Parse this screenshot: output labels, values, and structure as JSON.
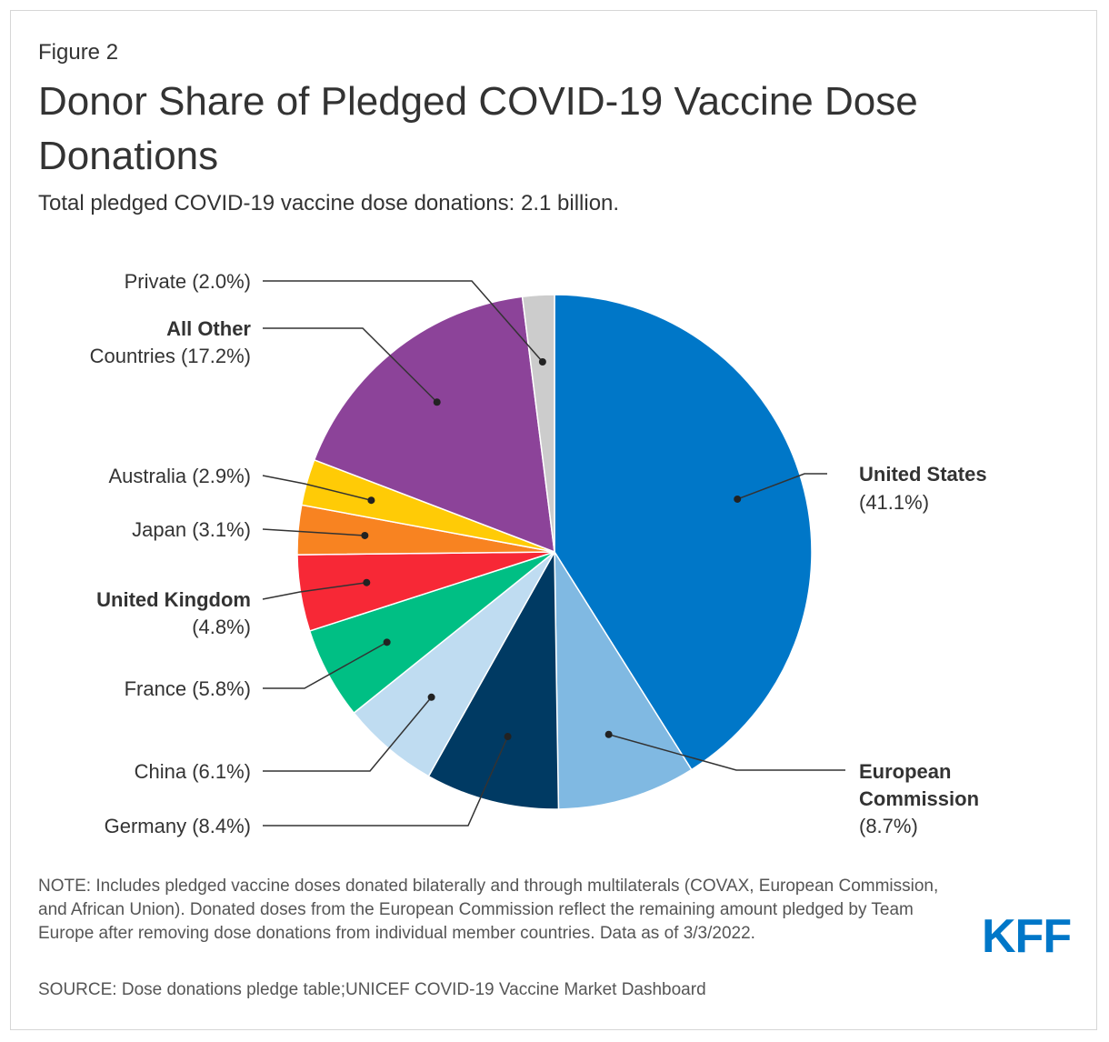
{
  "header": {
    "figure_label": "Figure 2",
    "title": "Donor Share of Pledged COVID-19 Vaccine Dose Donations",
    "subtitle": "Total pledged COVID-19 vaccine dose donations: 2.1 billion."
  },
  "chart_data": {
    "type": "pie",
    "title": "Donor Share of Pledged COVID-19 Vaccine Dose Donations",
    "subtitle": "Total pledged COVID-19 vaccine dose donations: 2.1 billion.",
    "unit": "%",
    "slices": [
      {
        "key": "us",
        "name": "United States",
        "value": 41.1,
        "value_label": "(41.1%)",
        "color": "#0077c8"
      },
      {
        "key": "ec",
        "name": "European Commission",
        "value": 8.7,
        "value_label": "(8.7%)",
        "color": "#80b9e2"
      },
      {
        "key": "de",
        "name": "Germany",
        "value": 8.4,
        "value_label": "(8.4%)",
        "color": "#003a63"
      },
      {
        "key": "cn",
        "name": "China",
        "value": 6.1,
        "value_label": "(6.1%)",
        "color": "#bfdcf1"
      },
      {
        "key": "fr",
        "name": "France",
        "value": 5.8,
        "value_label": "(5.8%)",
        "color": "#00bf84"
      },
      {
        "key": "uk",
        "name": "United Kingdom",
        "value": 4.8,
        "value_label": "(4.8%)",
        "color": "#f72836"
      },
      {
        "key": "jp",
        "name": "Japan",
        "value": 3.1,
        "value_label": "(3.1%)",
        "color": "#f88321"
      },
      {
        "key": "au",
        "name": "Australia",
        "value": 2.9,
        "value_label": "(2.9%)",
        "color": "#ffcb06"
      },
      {
        "key": "other",
        "name": "All Other Countries",
        "value": 17.2,
        "value_label": "(17.2%)",
        "color": "#8c4399"
      },
      {
        "key": "private",
        "name": "Private",
        "value": 2.0,
        "value_label": "(2.0%)",
        "color": "#cccccc"
      }
    ]
  },
  "labels": {
    "us": {
      "line1": "United States",
      "line2": "(41.1%)"
    },
    "ec": {
      "line1": "European",
      "line2": "Commission",
      "line3": "(8.7%)"
    },
    "de": {
      "name": "Germany",
      "pct": "(8.4%)"
    },
    "cn": {
      "name": "China",
      "pct": "(6.1%)"
    },
    "fr": {
      "name": "France",
      "pct": "(5.8%)"
    },
    "uk": {
      "line1": "United Kingdom",
      "line2": "(4.8%)"
    },
    "jp": {
      "name": "Japan",
      "pct": "(3.1%)"
    },
    "au": {
      "name": "Australia",
      "pct": "(2.9%)"
    },
    "other": {
      "line1": "All Other",
      "line2_bold": "Countries",
      "line2_pct": "(17.2%)"
    },
    "private": {
      "name": "Private",
      "pct": "(2.0%)"
    }
  },
  "footer": {
    "note": "NOTE: Includes pledged vaccine doses donated bilaterally and through multilaterals (COVAX, European Commission, and African Union). Donated doses from the European Commission reflect the remaining amount pledged by Team Europe after removing dose donations from individual member countries. Data as of 3/3/2022.",
    "source": "SOURCE: Dose donations pledge table;UNICEF COVID-19 Vaccine Market Dashboard",
    "logo": "KFF"
  }
}
